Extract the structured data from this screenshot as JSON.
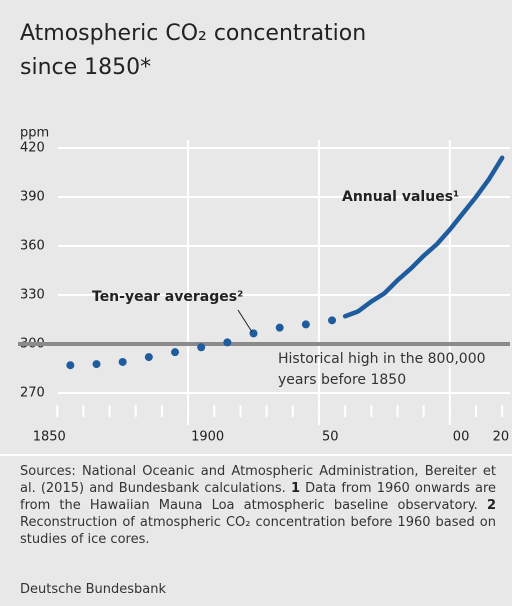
{
  "chart_data": {
    "type": "line",
    "title_lines": [
      "Atmospheric CO₂ concentration",
      "since 1850*"
    ],
    "y_unit": "ppm",
    "xlim": [
      1835,
      2023
    ],
    "ylim": [
      270,
      420
    ],
    "yticks": [
      270,
      300,
      330,
      360,
      390,
      420
    ],
    "xticks": [
      1850,
      1900,
      {
        "value": 1950,
        "label": "50"
      },
      {
        "value": 2000,
        "label": "00"
      },
      {
        "value": 2020,
        "label": "20"
      }
    ],
    "xgrid": [
      1900,
      1950,
      2000
    ],
    "xticks_minor": [
      1860,
      1870,
      1880,
      1890,
      1910,
      1920,
      1930,
      1940,
      1960,
      1970,
      1980,
      1990,
      2010
    ],
    "grid": true,
    "series": [
      {
        "name": "Ten-year averages²",
        "style": "dots",
        "color": "#1f5c9e",
        "x": [
          1855,
          1865,
          1875,
          1885,
          1895,
          1905,
          1915,
          1925,
          1935,
          1945,
          1955
        ],
        "values": [
          287,
          287.7,
          289,
          292,
          295,
          298,
          301,
          306.5,
          310,
          312,
          314.5
        ]
      },
      {
        "name": "Annual values¹",
        "style": "line",
        "color": "#1f5c9e",
        "x": [
          1960,
          1965,
          1970,
          1975,
          1980,
          1985,
          1990,
          1995,
          2000,
          2005,
          2010,
          2015,
          2020
        ],
        "values": [
          317,
          320,
          326,
          331,
          339,
          346,
          354,
          361,
          370,
          380,
          390,
          401,
          414
        ]
      }
    ],
    "reference_line": {
      "value": 300,
      "label_lines": [
        "Historical high in the 800,000",
        "years before 1850"
      ]
    }
  },
  "notes": {
    "sources": "Sources: National Oceanic and Atmospheric Administration, Bereiter et al. (2015) and Bundesbank calculations.",
    "footnotes": [
      {
        "number": "1",
        "text": "Data from 1960 onwards are from the Hawaiian Mauna Loa atmospheric baseline observatory."
      },
      {
        "number": "2",
        "text": "Reconstruction of atmospheric CO₂ concentration before 1960 based on studies of ice cores."
      }
    ],
    "publisher": "Deutsche Bundesbank"
  }
}
